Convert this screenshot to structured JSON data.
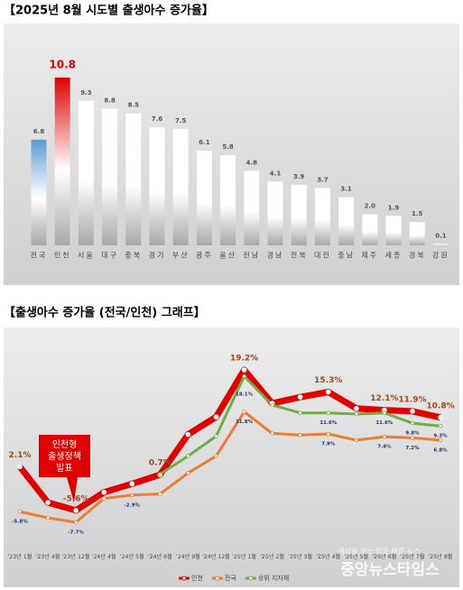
{
  "chart_data": [
    {
      "type": "bar",
      "title": "【2025년 8월 시도별 출생아수 증가율】",
      "categories": [
        "전국",
        "인천",
        "서울",
        "대구",
        "충북",
        "경기",
        "부산",
        "광주",
        "울산",
        "전남",
        "경남",
        "전북",
        "대전",
        "충남",
        "제주",
        "세종",
        "경북",
        "강원"
      ],
      "values": [
        6.8,
        10.8,
        9.3,
        8.8,
        8.5,
        7.6,
        7.5,
        6.1,
        5.8,
        4.8,
        4.1,
        3.9,
        3.7,
        3.1,
        2.0,
        1.9,
        1.5,
        0.1
      ],
      "value_labels": [
        "6.8",
        "10.8",
        "9.3",
        "8.8",
        "8.5",
        "7.6",
        "7.5",
        "6.1",
        "5.8",
        "4.8",
        "4.1",
        "3.9",
        "3.7",
        "3.1",
        "2.0",
        "1.9",
        "1.5",
        "0.1"
      ],
      "colors": [
        "#5b9bd5",
        "#e00000",
        "#ffffff",
        "#ffffff",
        "#ffffff",
        "#ffffff",
        "#ffffff",
        "#ffffff",
        "#ffffff",
        "#ffffff",
        "#ffffff",
        "#ffffff",
        "#ffffff",
        "#ffffff",
        "#ffffff",
        "#ffffff",
        "#ffffff",
        "#ffffff"
      ]
    },
    {
      "type": "line",
      "title": "【출생아수 증가율 (전국/인천) 그래프】",
      "categories": [
        "'23년 1월",
        "'23년 4월",
        "'23년 12월",
        "'24년 4월",
        "'24년 5월",
        "'24년 6월",
        "'24년 9월",
        "'24년 12월",
        "'25년 1월",
        "'25년 2월",
        "'25년 3월",
        "'25년 4월",
        "'25년 5월",
        "'25년 6월",
        "'25년 7월",
        "'25년 8월"
      ],
      "series": [
        {
          "name": "인천",
          "color": "#e00000",
          "values": [
            2.1,
            -4.2,
            -5.6,
            -2.4,
            -0.9,
            0.7,
            7.8,
            10.9,
            19.2,
            13.3,
            14.4,
            15.3,
            12.4,
            12.1,
            11.9,
            10.8
          ],
          "value_labels": [
            "2.1%",
            null,
            "-5.6%",
            null,
            null,
            "0.7%",
            null,
            null,
            "19.2%",
            null,
            null,
            "15.3%",
            null,
            "12.1%",
            "11.9%",
            "10.8%"
          ]
        },
        {
          "name": "전국",
          "color": "#ed7d31",
          "values": [
            -5.8,
            -6.9,
            -7.7,
            -3.5,
            -2.9,
            -2.7,
            1.0,
            4.0,
            11.8,
            8.0,
            7.7,
            7.9,
            6.8,
            7.4,
            7.2,
            6.8
          ],
          "value_labels": [
            "-5.8%",
            null,
            "-7.7%",
            null,
            "-2.9%",
            null,
            null,
            null,
            "11.8%",
            null,
            null,
            "7.9%",
            null,
            "7.4%",
            "7.2%",
            "6.8%"
          ]
        },
        {
          "name": "상위 지자체",
          "color": "#70ad47",
          "values": [
            null,
            null,
            null,
            null,
            null,
            0.8,
            4.0,
            7.5,
            18.1,
            13.0,
            11.6,
            11.6,
            11.4,
            11.6,
            9.8,
            9.3
          ],
          "value_labels": [
            null,
            null,
            null,
            null,
            null,
            null,
            null,
            null,
            "18.1%",
            null,
            null,
            "11.6%",
            null,
            "11.6%",
            "9.8%",
            "9.3%"
          ]
        }
      ],
      "annotation": [
        "인천형",
        "출생정책",
        "발표"
      ]
    }
  ],
  "watermark": {
    "slogan": "세상을 보는 밝은 빠른 뉴스",
    "text": "중앙뉴스타임스"
  }
}
